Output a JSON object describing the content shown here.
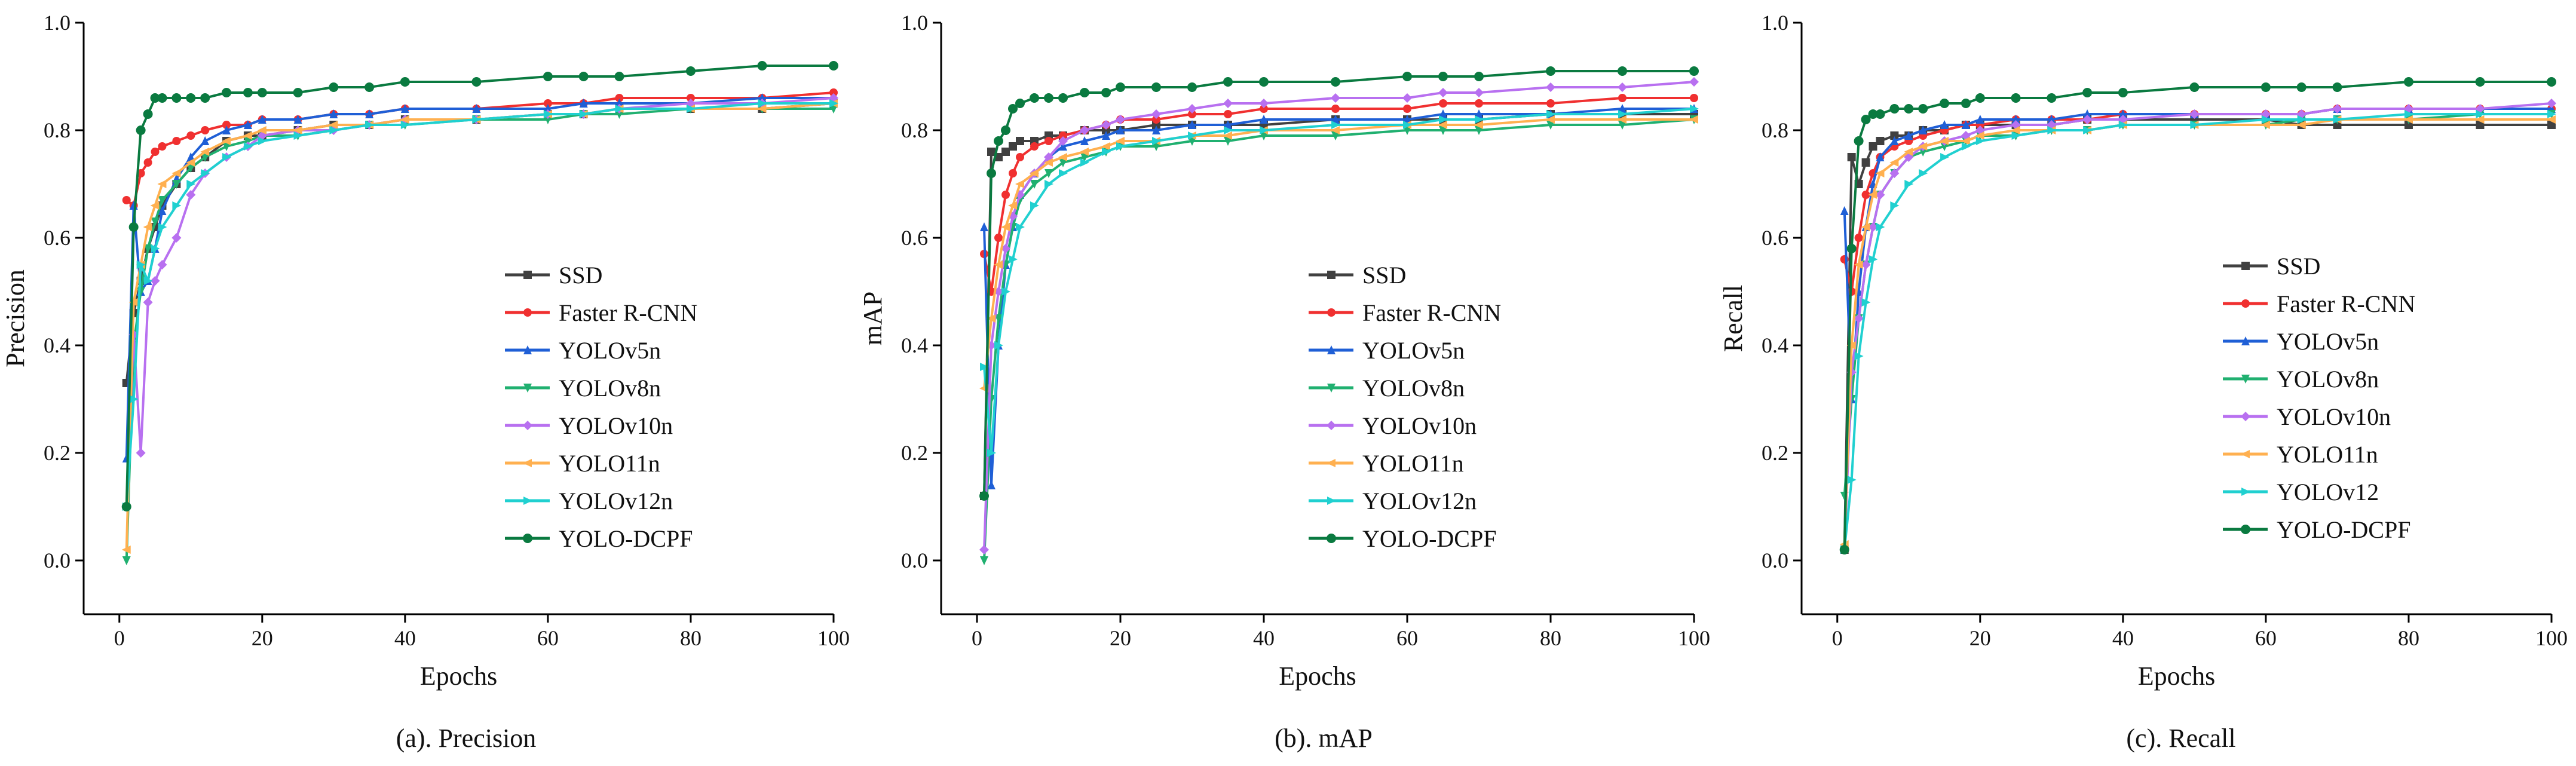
{
  "legend_labels": [
    "SSD",
    "Faster R-CNN",
    "YOLOv5n",
    "YOLOv8n",
    "YOLOv10n",
    "YOLO11n",
    "YOLOv12n",
    "YOLO-DCPF"
  ],
  "series_colors": [
    "#404040",
    "#f03030",
    "#1f5fd6",
    "#20b070",
    "#b870f0",
    "#ffb050",
    "#20d0d0",
    "#0a7a40"
  ],
  "chart_data": [
    {
      "type": "line",
      "caption": "(a). Precision",
      "xlabel": "Epochs",
      "ylabel": "Precision",
      "xlim": [
        -5,
        100
      ],
      "ylim": [
        -0.1,
        1.0
      ],
      "x_ticks": [
        0,
        20,
        40,
        60,
        80,
        100
      ],
      "y_ticks": [
        0.0,
        0.2,
        0.4,
        0.6,
        0.8,
        1.0
      ],
      "x_tick_labels": [
        "0",
        "20",
        "40",
        "60",
        "80",
        "100"
      ],
      "y_tick_labels": [
        "0.0",
        "0.2",
        "0.4",
        "0.6",
        "0.8",
        "1.0"
      ],
      "legend": [
        "SSD",
        "Faster R-CNN",
        "YOLOv5n",
        "YOLOv8n",
        "YOLOv10n",
        "YOLO11n",
        "YOLOv12n",
        "YOLO-DCPF"
      ],
      "series": [
        {
          "name": "SSD",
          "values": [
            0.33,
            0.46,
            0.52,
            0.58,
            0.62,
            0.66,
            0.7,
            0.73,
            0.75,
            0.78,
            0.79,
            0.79,
            0.8,
            0.81,
            0.81,
            0.82,
            0.82,
            0.83,
            0.83,
            0.84,
            0.84,
            0.84,
            0.85
          ]
        },
        {
          "name": "Faster R-CNN",
          "values": [
            0.67,
            0.66,
            0.72,
            0.74,
            0.76,
            0.77,
            0.78,
            0.79,
            0.8,
            0.81,
            0.81,
            0.82,
            0.82,
            0.83,
            0.83,
            0.84,
            0.84,
            0.85,
            0.85,
            0.86,
            0.86,
            0.86,
            0.87
          ]
        },
        {
          "name": "YOLOv5n",
          "values": [
            0.19,
            0.66,
            0.5,
            0.52,
            0.58,
            0.65,
            0.71,
            0.75,
            0.78,
            0.8,
            0.81,
            0.82,
            0.82,
            0.83,
            0.83,
            0.84,
            0.84,
            0.84,
            0.85,
            0.85,
            0.85,
            0.86,
            0.86
          ]
        },
        {
          "name": "YOLOv8n",
          "values": [
            0.0,
            0.4,
            0.5,
            0.58,
            0.63,
            0.67,
            0.7,
            0.73,
            0.75,
            0.77,
            0.78,
            0.79,
            0.79,
            0.8,
            0.81,
            0.81,
            0.82,
            0.82,
            0.83,
            0.83,
            0.84,
            0.84,
            0.84
          ]
        },
        {
          "name": "YOLOv10n",
          "values": [
            0.1,
            0.42,
            0.2,
            0.48,
            0.52,
            0.55,
            0.6,
            0.68,
            0.72,
            0.75,
            0.77,
            0.79,
            0.8,
            0.8,
            0.81,
            0.82,
            0.82,
            0.83,
            0.83,
            0.84,
            0.85,
            0.85,
            0.86
          ]
        },
        {
          "name": "YOLO11n",
          "values": [
            0.02,
            0.48,
            0.55,
            0.62,
            0.66,
            0.7,
            0.72,
            0.74,
            0.76,
            0.78,
            0.79,
            0.8,
            0.8,
            0.81,
            0.81,
            0.82,
            0.82,
            0.83,
            0.83,
            0.84,
            0.84,
            0.84,
            0.85
          ]
        },
        {
          "name": "YOLOv12n",
          "values": [
            0.1,
            0.3,
            0.55,
            0.52,
            0.58,
            0.62,
            0.66,
            0.7,
            0.72,
            0.75,
            0.77,
            0.78,
            0.79,
            0.8,
            0.81,
            0.81,
            0.82,
            0.83,
            0.83,
            0.84,
            0.84,
            0.85,
            0.85
          ]
        },
        {
          "name": "YOLO-DCPF",
          "values": [
            0.1,
            0.62,
            0.8,
            0.83,
            0.86,
            0.86,
            0.86,
            0.86,
            0.86,
            0.87,
            0.87,
            0.87,
            0.87,
            0.88,
            0.88,
            0.89,
            0.89,
            0.9,
            0.9,
            0.9,
            0.91,
            0.92,
            0.92
          ]
        }
      ]
    },
    {
      "type": "line",
      "caption": "(b). mAP",
      "xlabel": "Epochs",
      "ylabel": "mAP",
      "xlim": [
        -5,
        100
      ],
      "ylim": [
        -0.1,
        1.0
      ],
      "x_ticks": [
        0,
        20,
        40,
        60,
        80,
        100
      ],
      "y_ticks": [
        0.0,
        0.2,
        0.4,
        0.6,
        0.8,
        1.0
      ],
      "x_tick_labels": [
        "0",
        "20",
        "40",
        "60",
        "80",
        "100"
      ],
      "y_tick_labels": [
        "0.0",
        "0.2",
        "0.4",
        "0.6",
        "0.8",
        "1.0"
      ],
      "legend": [
        "SSD",
        "Faster R-CNN",
        "YOLOv5n",
        "YOLOv8n",
        "YOLOv10n",
        "YOLO11n",
        "YOLOv12n",
        "YOLO-DCPF"
      ],
      "series": [
        {
          "name": "SSD",
          "values": [
            0.12,
            0.76,
            0.75,
            0.76,
            0.77,
            0.78,
            0.78,
            0.79,
            0.79,
            0.8,
            0.8,
            0.8,
            0.81,
            0.81,
            0.81,
            0.81,
            0.82,
            0.82,
            0.82,
            0.82,
            0.83,
            0.83,
            0.83
          ]
        },
        {
          "name": "Faster R-CNN",
          "values": [
            0.57,
            0.5,
            0.6,
            0.68,
            0.72,
            0.75,
            0.77,
            0.78,
            0.79,
            0.8,
            0.81,
            0.82,
            0.82,
            0.83,
            0.83,
            0.84,
            0.84,
            0.84,
            0.85,
            0.85,
            0.85,
            0.86,
            0.86
          ]
        },
        {
          "name": "YOLOv5n",
          "values": [
            0.62,
            0.14,
            0.4,
            0.55,
            0.62,
            0.68,
            0.72,
            0.75,
            0.77,
            0.78,
            0.79,
            0.8,
            0.8,
            0.81,
            0.81,
            0.82,
            0.82,
            0.82,
            0.83,
            0.83,
            0.83,
            0.84,
            0.84
          ]
        },
        {
          "name": "YOLOv8n",
          "values": [
            0.0,
            0.3,
            0.45,
            0.55,
            0.62,
            0.67,
            0.7,
            0.72,
            0.74,
            0.75,
            0.76,
            0.77,
            0.77,
            0.78,
            0.78,
            0.79,
            0.79,
            0.8,
            0.8,
            0.8,
            0.81,
            0.81,
            0.82
          ]
        },
        {
          "name": "YOLOv10n",
          "values": [
            0.02,
            0.4,
            0.5,
            0.58,
            0.64,
            0.68,
            0.72,
            0.75,
            0.78,
            0.8,
            0.81,
            0.82,
            0.83,
            0.84,
            0.85,
            0.85,
            0.86,
            0.86,
            0.87,
            0.87,
            0.88,
            0.88,
            0.89
          ]
        },
        {
          "name": "YOLO11n",
          "values": [
            0.32,
            0.45,
            0.55,
            0.62,
            0.66,
            0.7,
            0.72,
            0.74,
            0.75,
            0.76,
            0.77,
            0.78,
            0.78,
            0.79,
            0.79,
            0.8,
            0.8,
            0.81,
            0.81,
            0.81,
            0.82,
            0.82,
            0.82
          ]
        },
        {
          "name": "YOLOv12n",
          "values": [
            0.36,
            0.2,
            0.4,
            0.5,
            0.56,
            0.62,
            0.66,
            0.7,
            0.72,
            0.74,
            0.76,
            0.77,
            0.78,
            0.79,
            0.8,
            0.8,
            0.81,
            0.81,
            0.82,
            0.82,
            0.83,
            0.83,
            0.84
          ]
        },
        {
          "name": "YOLO-DCPF",
          "values": [
            0.12,
            0.72,
            0.78,
            0.8,
            0.84,
            0.85,
            0.86,
            0.86,
            0.86,
            0.87,
            0.87,
            0.88,
            0.88,
            0.88,
            0.89,
            0.89,
            0.89,
            0.9,
            0.9,
            0.9,
            0.91,
            0.91,
            0.91
          ]
        }
      ]
    },
    {
      "type": "line",
      "caption": "(c). Recall",
      "xlabel": "Epochs",
      "ylabel": "Recall",
      "xlim": [
        -5,
        100
      ],
      "ylim": [
        -0.1,
        1.0
      ],
      "x_ticks": [
        0,
        20,
        40,
        60,
        80,
        100
      ],
      "y_ticks": [
        0.0,
        0.2,
        0.4,
        0.6,
        0.8,
        1.0
      ],
      "x_tick_labels": [
        "0",
        "20",
        "40",
        "60",
        "80",
        "100"
      ],
      "y_tick_labels": [
        "0.0",
        "0.2",
        "0.4",
        "0.6",
        "0.8",
        "1.0"
      ],
      "legend": [
        "SSD",
        "Faster R-CNN",
        "YOLOv5n",
        "YOLOv8n",
        "YOLOv10n",
        "YOLO11n",
        "YOLOv12",
        "YOLO-DCPF"
      ],
      "series": [
        {
          "name": "SSD",
          "values": [
            0.02,
            0.75,
            0.7,
            0.74,
            0.77,
            0.78,
            0.79,
            0.79,
            0.8,
            0.8,
            0.81,
            0.81,
            0.81,
            0.81,
            0.82,
            0.82,
            0.82,
            0.82,
            0.81,
            0.81,
            0.81,
            0.81,
            0.81
          ]
        },
        {
          "name": "Faster R-CNN",
          "values": [
            0.56,
            0.5,
            0.6,
            0.68,
            0.72,
            0.75,
            0.77,
            0.78,
            0.79,
            0.8,
            0.81,
            0.81,
            0.82,
            0.82,
            0.82,
            0.83,
            0.83,
            0.83,
            0.83,
            0.84,
            0.84,
            0.84,
            0.84
          ]
        },
        {
          "name": "YOLOv5n",
          "values": [
            0.65,
            0.3,
            0.5,
            0.62,
            0.7,
            0.75,
            0.78,
            0.79,
            0.8,
            0.81,
            0.81,
            0.82,
            0.82,
            0.82,
            0.83,
            0.83,
            0.83,
            0.83,
            0.83,
            0.84,
            0.84,
            0.84,
            0.84
          ]
        },
        {
          "name": "YOLOv8n",
          "values": [
            0.12,
            0.3,
            0.45,
            0.55,
            0.62,
            0.68,
            0.72,
            0.75,
            0.76,
            0.77,
            0.78,
            0.79,
            0.79,
            0.8,
            0.8,
            0.81,
            0.81,
            0.81,
            0.82,
            0.82,
            0.82,
            0.83,
            0.83
          ]
        },
        {
          "name": "YOLOv10n",
          "values": [
            0.02,
            0.35,
            0.45,
            0.55,
            0.62,
            0.68,
            0.72,
            0.75,
            0.77,
            0.78,
            0.79,
            0.8,
            0.81,
            0.81,
            0.82,
            0.82,
            0.83,
            0.83,
            0.83,
            0.84,
            0.84,
            0.84,
            0.85
          ]
        },
        {
          "name": "YOLO11n",
          "values": [
            0.03,
            0.4,
            0.55,
            0.62,
            0.68,
            0.72,
            0.74,
            0.76,
            0.77,
            0.78,
            0.78,
            0.79,
            0.8,
            0.8,
            0.8,
            0.81,
            0.81,
            0.81,
            0.81,
            0.82,
            0.82,
            0.82,
            0.82
          ]
        },
        {
          "name": "YOLOv12",
          "values": [
            0.02,
            0.15,
            0.38,
            0.48,
            0.56,
            0.62,
            0.66,
            0.7,
            0.72,
            0.75,
            0.77,
            0.78,
            0.79,
            0.8,
            0.8,
            0.81,
            0.81,
            0.82,
            0.82,
            0.82,
            0.83,
            0.83,
            0.83
          ]
        },
        {
          "name": "YOLO-DCPF",
          "values": [
            0.02,
            0.58,
            0.78,
            0.82,
            0.83,
            0.83,
            0.84,
            0.84,
            0.84,
            0.85,
            0.85,
            0.86,
            0.86,
            0.86,
            0.87,
            0.87,
            0.88,
            0.88,
            0.88,
            0.88,
            0.89,
            0.89,
            0.89
          ]
        }
      ]
    }
  ],
  "x_points": [
    1,
    2,
    3,
    4,
    5,
    6,
    8,
    10,
    12,
    15,
    18,
    20,
    25,
    30,
    35,
    40,
    50,
    60,
    65,
    70,
    80,
    90,
    100
  ]
}
